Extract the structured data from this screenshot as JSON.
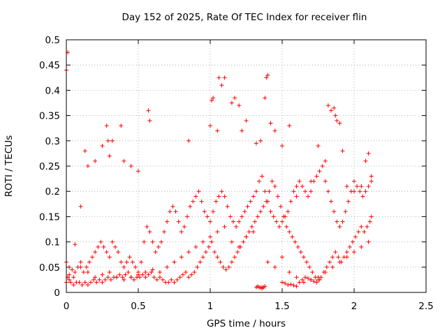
{
  "chart_data": {
    "type": "scatter",
    "title": "Day 152 of 2025, Rate Of TEC Index for receiver flin",
    "xlabel": "GPS time / hours",
    "ylabel": "ROTI / TECUs",
    "xlim": [
      0,
      2.5
    ],
    "ylim": [
      0,
      0.5
    ],
    "x_ticks": [
      "0",
      "0.5",
      "1",
      "1.5",
      "2",
      "2.5"
    ],
    "y_ticks": [
      "0",
      "0.05",
      "0.1",
      "0.15",
      "0.2",
      "0.25",
      "0.3",
      "0.35",
      "0.4",
      "0.45",
      "0.5"
    ],
    "grid": true,
    "marker": "plus",
    "color": "#ff0000",
    "series": [
      {
        "x": [
          0.0,
          0.01,
          0.02,
          0.03,
          0.05,
          0.07,
          0.09,
          0.11,
          0.13,
          0.15,
          0.17,
          0.19,
          0.21,
          0.23,
          0.25,
          0.27,
          0.29,
          0.31,
          0.33,
          0.35,
          0.37,
          0.39,
          0.41,
          0.43,
          0.45,
          0.47,
          0.49,
          0.51,
          0.53,
          0.55,
          0.57,
          0.59,
          0.61,
          0.63,
          0.65,
          0.67,
          0.69,
          0.71,
          0.73,
          0.75,
          0.77,
          0.79,
          0.81,
          0.83,
          0.85,
          0.87,
          0.89,
          0.91,
          0.93,
          0.95,
          0.97,
          0.99,
          1.01,
          1.03,
          1.05,
          1.07,
          1.09,
          1.11,
          1.13,
          1.15,
          1.17,
          1.19,
          1.21,
          1.23,
          1.25,
          1.27,
          1.29,
          1.31,
          1.33,
          1.35,
          1.37,
          1.39,
          1.41,
          1.43,
          1.45,
          1.47,
          1.49,
          1.51,
          1.53,
          1.55,
          1.57,
          1.59,
          1.61,
          1.63,
          1.65,
          1.67,
          1.69,
          1.71,
          1.73,
          1.75,
          1.77,
          1.79,
          1.81,
          1.83,
          1.85,
          1.87,
          1.89,
          1.91,
          1.93,
          1.95,
          1.97,
          1.99,
          2.01,
          2.03,
          2.05,
          2.07,
          2.09,
          2.11,
          2.12,
          0.0,
          0.02,
          0.04,
          0.06,
          0.08,
          0.1,
          0.12,
          0.14,
          0.16,
          0.18,
          0.2,
          0.22,
          0.24,
          0.26,
          0.28,
          0.3,
          0.32,
          0.34,
          0.36,
          0.38,
          0.4,
          0.42,
          0.44,
          0.46,
          0.48,
          0.5,
          0.52,
          0.54,
          0.56,
          0.58,
          0.6,
          0.62,
          0.64,
          0.66,
          0.68,
          0.7,
          0.72,
          0.74,
          0.76,
          0.78,
          0.8,
          0.82,
          0.84,
          0.86,
          0.88,
          0.9,
          0.92,
          0.94,
          0.96,
          0.98,
          1.0,
          1.02,
          1.04,
          1.06,
          1.08,
          1.1,
          1.12,
          1.14,
          1.16,
          1.18,
          1.2,
          1.22,
          1.24,
          1.26,
          1.28,
          1.3,
          1.32,
          1.34,
          1.36,
          1.38,
          1.4,
          1.42,
          1.44,
          1.46,
          1.48,
          1.5,
          1.52,
          1.54,
          1.56,
          1.58,
          1.6,
          1.62,
          1.64,
          1.66,
          1.68,
          1.7,
          1.72,
          1.74,
          1.76,
          1.78,
          1.8,
          1.82,
          1.84,
          1.86,
          1.88,
          1.9,
          1.92,
          1.94,
          1.96,
          1.98,
          2.0,
          2.02,
          2.04,
          2.06,
          2.08,
          2.1,
          2.12,
          0.0,
          0.01,
          0.06,
          0.1,
          0.13,
          0.15,
          0.2,
          0.25,
          0.28,
          0.29,
          0.3,
          0.32,
          0.38,
          0.4,
          0.45,
          0.5,
          0.57,
          0.58,
          0.85,
          1.0,
          1.01,
          1.02,
          1.05,
          1.06,
          1.08,
          1.1,
          1.15,
          1.17,
          1.2,
          1.22,
          1.25,
          1.32,
          1.35,
          1.36,
          1.38,
          1.39,
          1.4,
          1.42,
          1.45,
          1.5,
          1.55,
          1.6,
          1.7,
          1.75,
          1.8,
          1.82,
          1.84,
          1.86,
          1.87,
          1.88,
          1.9,
          1.92,
          1.95,
          2.0,
          2.05,
          2.08,
          2.1,
          2.12,
          0.02,
          0.05,
          0.1,
          0.15,
          0.2,
          0.25,
          0.3,
          0.35,
          0.4,
          0.45,
          0.5,
          0.55,
          0.6,
          0.65,
          0.7,
          0.75,
          0.8,
          0.85,
          0.9,
          0.95,
          1.0,
          1.05,
          1.1,
          1.15,
          1.2,
          1.25,
          1.3,
          1.4,
          1.45,
          1.5,
          1.55,
          1.6,
          1.65,
          1.7,
          1.75,
          1.8,
          1.85,
          1.9,
          1.95,
          2.0,
          2.05,
          2.1,
          1.32,
          1.33,
          1.34,
          1.35,
          1.36,
          1.37,
          1.38,
          1.5,
          1.52,
          1.54,
          1.56,
          1.58,
          1.6,
          1.62,
          1.64,
          1.66,
          1.68,
          1.7,
          1.72,
          1.74,
          1.76
        ],
        "y": [
          0.02,
          0.03,
          0.025,
          0.02,
          0.015,
          0.02,
          0.02,
          0.015,
          0.02,
          0.015,
          0.02,
          0.025,
          0.02,
          0.025,
          0.02,
          0.025,
          0.03,
          0.025,
          0.03,
          0.03,
          0.035,
          0.03,
          0.035,
          0.04,
          0.03,
          0.025,
          0.03,
          0.03,
          0.035,
          0.03,
          0.035,
          0.04,
          0.03,
          0.025,
          0.03,
          0.025,
          0.02,
          0.02,
          0.025,
          0.02,
          0.025,
          0.03,
          0.035,
          0.04,
          0.03,
          0.035,
          0.04,
          0.05,
          0.06,
          0.07,
          0.08,
          0.09,
          0.1,
          0.08,
          0.07,
          0.06,
          0.05,
          0.045,
          0.05,
          0.06,
          0.07,
          0.08,
          0.09,
          0.1,
          0.11,
          0.12,
          0.13,
          0.14,
          0.15,
          0.16,
          0.17,
          0.18,
          0.2,
          0.22,
          0.21,
          0.19,
          0.17,
          0.15,
          0.13,
          0.12,
          0.11,
          0.1,
          0.09,
          0.08,
          0.07,
          0.06,
          0.05,
          0.04,
          0.03,
          0.025,
          0.03,
          0.04,
          0.05,
          0.06,
          0.07,
          0.08,
          0.07,
          0.06,
          0.07,
          0.08,
          0.09,
          0.1,
          0.11,
          0.12,
          0.13,
          0.12,
          0.13,
          0.14,
          0.15,
          0.06,
          0.05,
          0.045,
          0.04,
          0.05,
          0.06,
          0.04,
          0.05,
          0.06,
          0.07,
          0.08,
          0.09,
          0.1,
          0.09,
          0.08,
          0.07,
          0.1,
          0.09,
          0.08,
          0.06,
          0.05,
          0.06,
          0.07,
          0.06,
          0.05,
          0.04,
          0.06,
          0.1,
          0.13,
          0.12,
          0.1,
          0.08,
          0.09,
          0.1,
          0.12,
          0.14,
          0.16,
          0.17,
          0.16,
          0.14,
          0.12,
          0.13,
          0.15,
          0.17,
          0.18,
          0.19,
          0.2,
          0.18,
          0.16,
          0.15,
          0.14,
          0.16,
          0.18,
          0.19,
          0.2,
          0.19,
          0.17,
          0.15,
          0.14,
          0.13,
          0.14,
          0.15,
          0.16,
          0.17,
          0.18,
          0.19,
          0.2,
          0.22,
          0.23,
          0.2,
          0.18,
          0.16,
          0.15,
          0.14,
          0.13,
          0.14,
          0.15,
          0.16,
          0.18,
          0.2,
          0.21,
          0.22,
          0.21,
          0.2,
          0.19,
          0.2,
          0.22,
          0.23,
          0.24,
          0.25,
          0.22,
          0.2,
          0.18,
          0.16,
          0.14,
          0.13,
          0.14,
          0.16,
          0.18,
          0.2,
          0.22,
          0.21,
          0.2,
          0.19,
          0.2,
          0.21,
          0.22,
          0.44,
          0.475,
          0.095,
          0.17,
          0.28,
          0.25,
          0.26,
          0.29,
          0.33,
          0.3,
          0.27,
          0.3,
          0.33,
          0.26,
          0.25,
          0.24,
          0.36,
          0.34,
          0.3,
          0.33,
          0.38,
          0.385,
          0.32,
          0.425,
          0.41,
          0.425,
          0.375,
          0.385,
          0.37,
          0.32,
          0.34,
          0.295,
          0.3,
          0.01,
          0.385,
          0.425,
          0.43,
          0.335,
          0.32,
          0.29,
          0.33,
          0.19,
          0.22,
          0.29,
          0.26,
          0.37,
          0.36,
          0.365,
          0.35,
          0.34,
          0.335,
          0.28,
          0.21,
          0.2,
          0.21,
          0.26,
          0.275,
          0.23,
          0.035,
          0.03,
          0.05,
          0.04,
          0.03,
          0.035,
          0.04,
          0.03,
          0.025,
          0.03,
          0.035,
          0.04,
          0.045,
          0.04,
          0.05,
          0.06,
          0.07,
          0.08,
          0.09,
          0.1,
          0.11,
          0.12,
          0.13,
          0.1,
          0.09,
          0.11,
          0.12,
          0.06,
          0.05,
          0.07,
          0.04,
          0.03,
          0.02,
          0.025,
          0.03,
          0.04,
          0.05,
          0.06,
          0.07,
          0.08,
          0.09,
          0.1,
          0.01,
          0.012,
          0.01,
          0.01,
          0.008,
          0.01,
          0.012,
          0.02,
          0.018,
          0.015,
          0.016,
          0.014,
          0.012,
          0.02,
          0.025,
          0.03,
          0.028,
          0.025,
          0.022,
          0.02,
          0.025
        ]
      }
    ]
  }
}
